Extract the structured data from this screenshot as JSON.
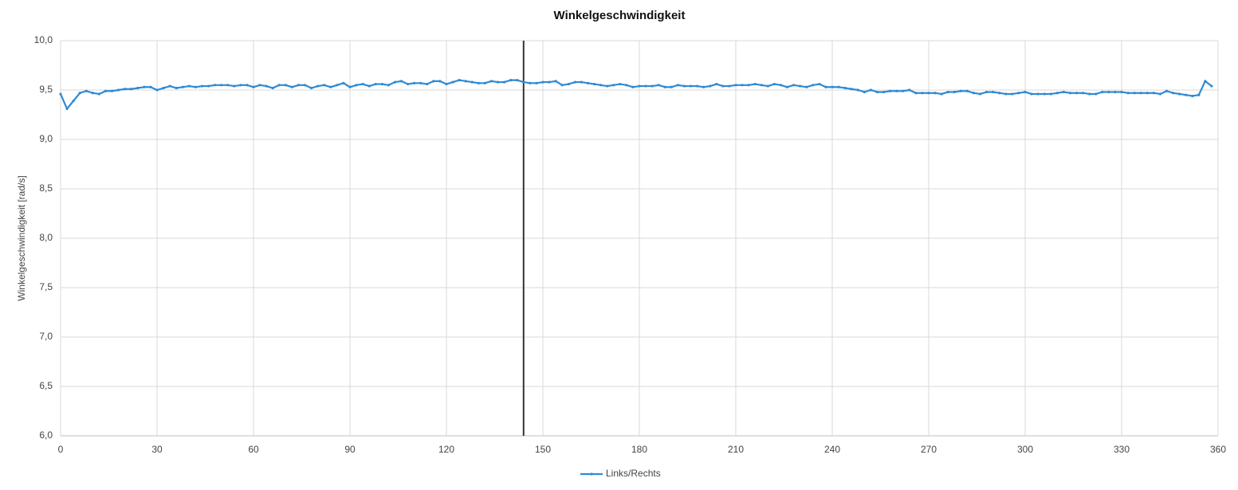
{
  "chart_data": {
    "type": "line",
    "title": "Winkelgeschwindigkeit",
    "y_label": "Winkelgeschwindigkeit [rad/s]",
    "grid": true,
    "legend": "bottom",
    "xlim": [
      0,
      360
    ],
    "xticks": [
      0,
      30,
      60,
      90,
      120,
      150,
      180,
      210,
      240,
      270,
      300,
      330,
      360
    ],
    "ylim": [
      6,
      10
    ],
    "yticks": [
      {
        "value": 6,
        "label": "6,0"
      },
      {
        "value": 6.5,
        "label": "6,5"
      },
      {
        "value": 7,
        "label": "7,0"
      },
      {
        "value": 7.5,
        "label": "7,5"
      },
      {
        "value": 8,
        "label": "8,0"
      },
      {
        "value": 8.5,
        "label": "8,5"
      },
      {
        "value": 9,
        "label": "9,0"
      },
      {
        "value": 9.5,
        "label": "9,5"
      },
      {
        "value": 10,
        "label": "10,0"
      }
    ],
    "vertical_line": {
      "x": 144,
      "color": "#333333"
    },
    "x": [
      0,
      2,
      4,
      6,
      8,
      10,
      12,
      14,
      16,
      18,
      20,
      22,
      24,
      26,
      28,
      30,
      32,
      34,
      36,
      38,
      40,
      42,
      44,
      46,
      48,
      50,
      52,
      54,
      56,
      58,
      60,
      62,
      64,
      66,
      68,
      70,
      72,
      74,
      76,
      78,
      80,
      82,
      84,
      86,
      88,
      90,
      92,
      94,
      96,
      98,
      100,
      102,
      104,
      106,
      108,
      110,
      112,
      114,
      116,
      118,
      120,
      122,
      124,
      126,
      128,
      130,
      132,
      134,
      136,
      138,
      140,
      142,
      144,
      146,
      148,
      150,
      152,
      154,
      156,
      158,
      160,
      162,
      164,
      166,
      168,
      170,
      172,
      174,
      176,
      178,
      180,
      182,
      184,
      186,
      188,
      190,
      192,
      194,
      196,
      198,
      200,
      202,
      204,
      206,
      208,
      210,
      212,
      214,
      216,
      218,
      220,
      222,
      224,
      226,
      228,
      230,
      232,
      234,
      236,
      238,
      240,
      242,
      244,
      246,
      248,
      250,
      252,
      254,
      256,
      258,
      260,
      262,
      264,
      266,
      268,
      270,
      272,
      274,
      276,
      278,
      280,
      282,
      284,
      286,
      288,
      290,
      292,
      294,
      296,
      298,
      300,
      302,
      304,
      306,
      308,
      310,
      312,
      314,
      316,
      318,
      320,
      322,
      324,
      326,
      328,
      330,
      332,
      334,
      336,
      338,
      340,
      342,
      344,
      346,
      348,
      350,
      352,
      354,
      356,
      358
    ],
    "series": [
      {
        "name": "Links/Rechts",
        "color": "#2f8ad3",
        "values": [
          9.46,
          9.31,
          9.39,
          9.47,
          9.49,
          9.47,
          9.46,
          9.49,
          9.49,
          9.5,
          9.51,
          9.51,
          9.52,
          9.53,
          9.53,
          9.5,
          9.52,
          9.54,
          9.52,
          9.53,
          9.54,
          9.53,
          9.54,
          9.54,
          9.55,
          9.55,
          9.55,
          9.54,
          9.55,
          9.55,
          9.53,
          9.55,
          9.54,
          9.52,
          9.55,
          9.55,
          9.53,
          9.55,
          9.55,
          9.52,
          9.54,
          9.55,
          9.53,
          9.55,
          9.57,
          9.53,
          9.55,
          9.56,
          9.54,
          9.56,
          9.56,
          9.55,
          9.58,
          9.59,
          9.56,
          9.57,
          9.57,
          9.56,
          9.59,
          9.59,
          9.56,
          9.58,
          9.6,
          9.59,
          9.58,
          9.57,
          9.57,
          9.59,
          9.58,
          9.58,
          9.6,
          9.6,
          9.58,
          9.57,
          9.57,
          9.58,
          9.58,
          9.59,
          9.55,
          9.56,
          9.58,
          9.58,
          9.57,
          9.56,
          9.55,
          9.54,
          9.55,
          9.56,
          9.55,
          9.53,
          9.54,
          9.54,
          9.54,
          9.55,
          9.53,
          9.53,
          9.55,
          9.54,
          9.54,
          9.54,
          9.53,
          9.54,
          9.56,
          9.54,
          9.54,
          9.55,
          9.55,
          9.55,
          9.56,
          9.55,
          9.54,
          9.56,
          9.55,
          9.53,
          9.55,
          9.54,
          9.53,
          9.55,
          9.56,
          9.53,
          9.53,
          9.53,
          9.52,
          9.51,
          9.5,
          9.48,
          9.5,
          9.48,
          9.48,
          9.49,
          9.49,
          9.49,
          9.5,
          9.47,
          9.47,
          9.47,
          9.47,
          9.46,
          9.48,
          9.48,
          9.49,
          9.49,
          9.47,
          9.46,
          9.48,
          9.48,
          9.47,
          9.46,
          9.46,
          9.47,
          9.48,
          9.46,
          9.46,
          9.46,
          9.46,
          9.47,
          9.48,
          9.47,
          9.47,
          9.47,
          9.46,
          9.46,
          9.48,
          9.48,
          9.48,
          9.48,
          9.47,
          9.47,
          9.47,
          9.47,
          9.47,
          9.46,
          9.49,
          9.47,
          9.46,
          9.45,
          9.44,
          9.45,
          9.59,
          9.54
        ]
      }
    ]
  }
}
